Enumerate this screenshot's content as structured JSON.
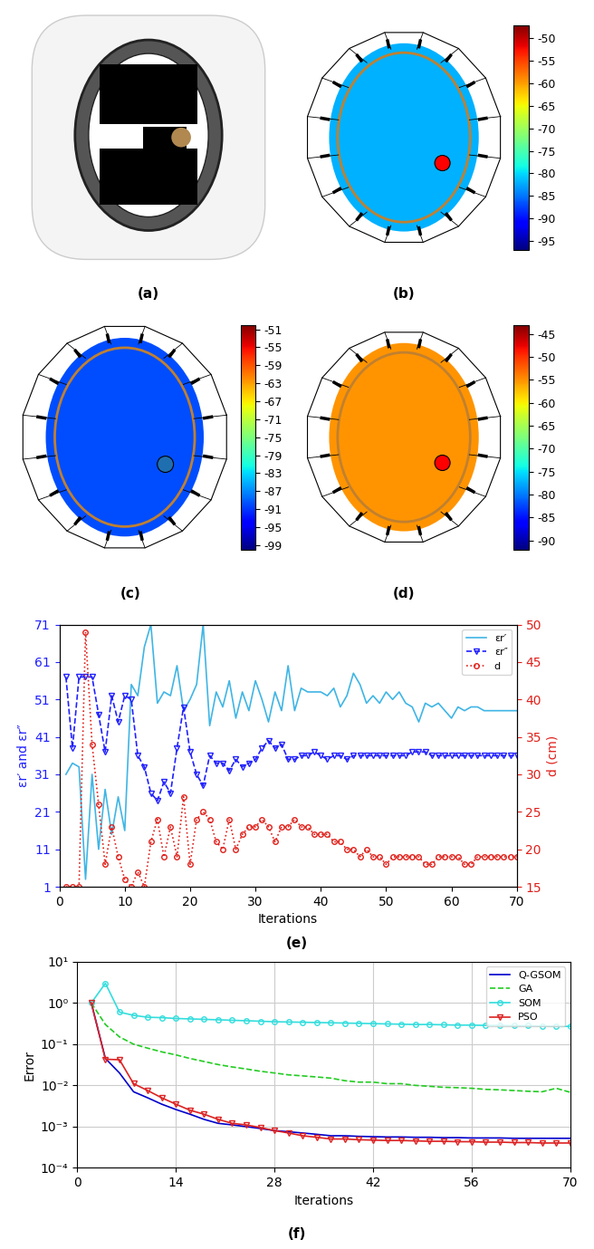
{
  "panels": [
    {
      "label": "(a)"
    },
    {
      "label": "(b)",
      "colorbar": {
        "range": [
          -97,
          -47
        ],
        "ticks": [
          -95,
          -90,
          -85,
          -80,
          -75,
          -70,
          -65,
          -60,
          -55,
          -50
        ]
      }
    },
    {
      "label": "(c)",
      "colorbar": {
        "range": [
          -100,
          -50
        ],
        "ticks": [
          -99,
          -95,
          -91,
          -87,
          -83,
          -79,
          -75,
          -71,
          -67,
          -63,
          -59,
          -55,
          -51
        ]
      }
    },
    {
      "label": "(d)",
      "colorbar": {
        "range": [
          -92,
          -43
        ],
        "ticks": [
          -90,
          -85,
          -80,
          -75,
          -70,
          -65,
          -60,
          -55,
          -50,
          -45
        ]
      }
    }
  ],
  "chart_data": [
    {
      "type": "line",
      "label": "(e)",
      "x_label": "Iterations",
      "y_label": "εr′ and εr″",
      "y2_label": "d (cm)",
      "xlim": [
        0,
        70
      ],
      "xticks": [
        0,
        10,
        20,
        30,
        40,
        50,
        60,
        70
      ],
      "ylim": [
        1,
        71
      ],
      "yticks": [
        1,
        11,
        21,
        31,
        41,
        51,
        61,
        71
      ],
      "y2lim": [
        15,
        50
      ],
      "y2ticks": [
        15,
        20,
        25,
        30,
        35,
        40,
        45,
        50
      ],
      "legend": "upper right",
      "grid": false,
      "x": [
        1,
        2,
        3,
        4,
        5,
        6,
        7,
        8,
        9,
        10,
        11,
        12,
        13,
        14,
        15,
        16,
        17,
        18,
        19,
        20,
        21,
        22,
        23,
        24,
        25,
        26,
        27,
        28,
        29,
        30,
        31,
        32,
        33,
        34,
        35,
        36,
        37,
        38,
        39,
        40,
        41,
        42,
        43,
        44,
        45,
        46,
        47,
        48,
        49,
        50,
        51,
        52,
        53,
        54,
        55,
        56,
        57,
        58,
        59,
        60,
        61,
        62,
        63,
        64,
        65,
        66,
        67,
        68,
        69,
        70
      ],
      "series": [
        {
          "name": "εr′",
          "color": "#3fb5e5",
          "marker": "none",
          "line_style": "solid",
          "values": [
            31,
            34,
            33,
            3,
            31,
            11,
            27,
            15,
            25,
            16,
            55,
            52,
            65,
            71,
            50,
            53,
            52,
            60,
            48,
            51,
            55,
            71,
            44,
            53,
            49,
            56,
            46,
            53,
            48,
            56,
            51,
            45,
            53,
            48,
            60,
            48,
            54,
            53,
            53,
            53,
            52,
            54,
            49,
            52,
            58,
            55,
            50,
            52,
            50,
            53,
            51,
            53,
            50,
            49,
            45,
            50,
            49,
            50,
            48,
            46,
            49,
            48,
            49,
            49,
            48,
            48,
            48,
            48,
            48,
            48
          ]
        },
        {
          "name": "εr″",
          "color": "#2020ff",
          "marker": "triangle_down",
          "line_style": "dashed",
          "values": [
            57,
            38,
            57,
            57,
            57,
            47,
            37,
            52,
            45,
            52,
            51,
            36,
            33,
            26,
            24,
            29,
            26,
            38,
            49,
            37,
            31,
            28,
            36,
            34,
            34,
            32,
            35,
            33,
            34,
            35,
            38,
            40,
            38,
            39,
            35,
            35,
            36,
            36,
            37,
            36,
            35,
            36,
            36,
            35,
            36,
            36,
            36,
            36,
            36,
            36,
            36,
            36,
            36,
            37,
            37,
            37,
            36,
            36,
            36,
            36,
            36,
            36,
            36,
            36,
            36,
            36,
            36,
            36,
            36,
            36
          ]
        },
        {
          "name": "d",
          "color": "#e0201a",
          "marker": "circle",
          "line_style": "dotted",
          "axis": "y2",
          "values": [
            15,
            15,
            15,
            49,
            34,
            26,
            18,
            23,
            19,
            16,
            15,
            17,
            15,
            21,
            24,
            19,
            23,
            19,
            27,
            18,
            24,
            25,
            24,
            21,
            20,
            24,
            20,
            22,
            23,
            23,
            24,
            23,
            21,
            23,
            23,
            24,
            23,
            23,
            22,
            22,
            22,
            21,
            21,
            20,
            20,
            19,
            20,
            19,
            19,
            18,
            19,
            19,
            19,
            19,
            19,
            18,
            18,
            19,
            19,
            19,
            19,
            18,
            18,
            19,
            19,
            19,
            19,
            19,
            19,
            19
          ]
        }
      ]
    },
    {
      "type": "line",
      "label": "(f)",
      "x_label": "Iterations",
      "y_label": "Error",
      "log": "y",
      "grid": true,
      "legend": "upper right",
      "xlim": [
        0,
        70
      ],
      "xticks": [
        0,
        14,
        28,
        42,
        56,
        70
      ],
      "ylim": [
        0.0001,
        10
      ],
      "yticks": [
        {
          "value": 0.0001,
          "label": "10⁻⁴"
        },
        {
          "value": 0.001,
          "label": "10⁻³"
        },
        {
          "value": 0.01,
          "label": "10⁻²"
        },
        {
          "value": 0.1,
          "label": "10⁻¹"
        },
        {
          "value": 1,
          "label": "10⁰"
        },
        {
          "value": 10,
          "label": "10¹"
        }
      ],
      "x": [
        2,
        4,
        6,
        8,
        10,
        12,
        14,
        16,
        18,
        20,
        22,
        24,
        26,
        28,
        30,
        32,
        34,
        36,
        38,
        40,
        42,
        44,
        46,
        48,
        50,
        52,
        54,
        56,
        58,
        60,
        62,
        64,
        66,
        68,
        70
      ],
      "series": [
        {
          "name": "Q-GSOM",
          "color": "#0000cc",
          "marker": "none",
          "line_style": "solid",
          "values": [
            1,
            0.045,
            0.02,
            0.007,
            0.005,
            0.0035,
            0.0026,
            0.002,
            0.0015,
            0.0012,
            0.0011,
            0.001,
            0.0009,
            0.0008,
            0.00075,
            0.0007,
            0.00065,
            0.0006,
            0.0006,
            0.00058,
            0.00057,
            0.00056,
            0.00056,
            0.00055,
            0.00055,
            0.00054,
            0.00054,
            0.00053,
            0.00053,
            0.00053,
            0.00052,
            0.00052,
            0.00052,
            0.00052,
            0.00052
          ]
        },
        {
          "name": "GA",
          "color": "#22cc22",
          "marker": "none",
          "line_style": "dashed",
          "values": [
            1,
            0.3,
            0.15,
            0.1,
            0.08,
            0.065,
            0.055,
            0.045,
            0.038,
            0.032,
            0.028,
            0.025,
            0.022,
            0.02,
            0.018,
            0.017,
            0.016,
            0.015,
            0.013,
            0.012,
            0.012,
            0.011,
            0.011,
            0.01,
            0.0095,
            0.009,
            0.0088,
            0.0085,
            0.008,
            0.0078,
            0.0075,
            0.0072,
            0.007,
            0.0085,
            0.0068
          ]
        },
        {
          "name": "SOM",
          "color": "#33dddd",
          "marker": "circle",
          "line_style": "solid",
          "values": [
            1,
            3,
            0.6,
            0.5,
            0.45,
            0.44,
            0.42,
            0.41,
            0.4,
            0.39,
            0.38,
            0.37,
            0.36,
            0.35,
            0.345,
            0.34,
            0.335,
            0.33,
            0.325,
            0.32,
            0.315,
            0.31,
            0.305,
            0.3,
            0.3,
            0.295,
            0.29,
            0.29,
            0.285,
            0.285,
            0.28,
            0.28,
            0.275,
            0.27,
            0.27
          ]
        },
        {
          "name": "PSO",
          "color": "#dd2222",
          "marker": "triangle_down",
          "line_style": "solid",
          "values": [
            1,
            0.043,
            0.042,
            0.011,
            0.0075,
            0.005,
            0.0035,
            0.0025,
            0.002,
            0.0015,
            0.0012,
            0.0011,
            0.00095,
            0.0008,
            0.0007,
            0.0006,
            0.00055,
            0.0005,
            0.0005,
            0.00048,
            0.00047,
            0.00046,
            0.00046,
            0.00045,
            0.00044,
            0.00044,
            0.00043,
            0.00043,
            0.00042,
            0.00042,
            0.00041,
            0.00041,
            0.0004,
            0.0004,
            0.0004
          ]
        }
      ]
    }
  ]
}
